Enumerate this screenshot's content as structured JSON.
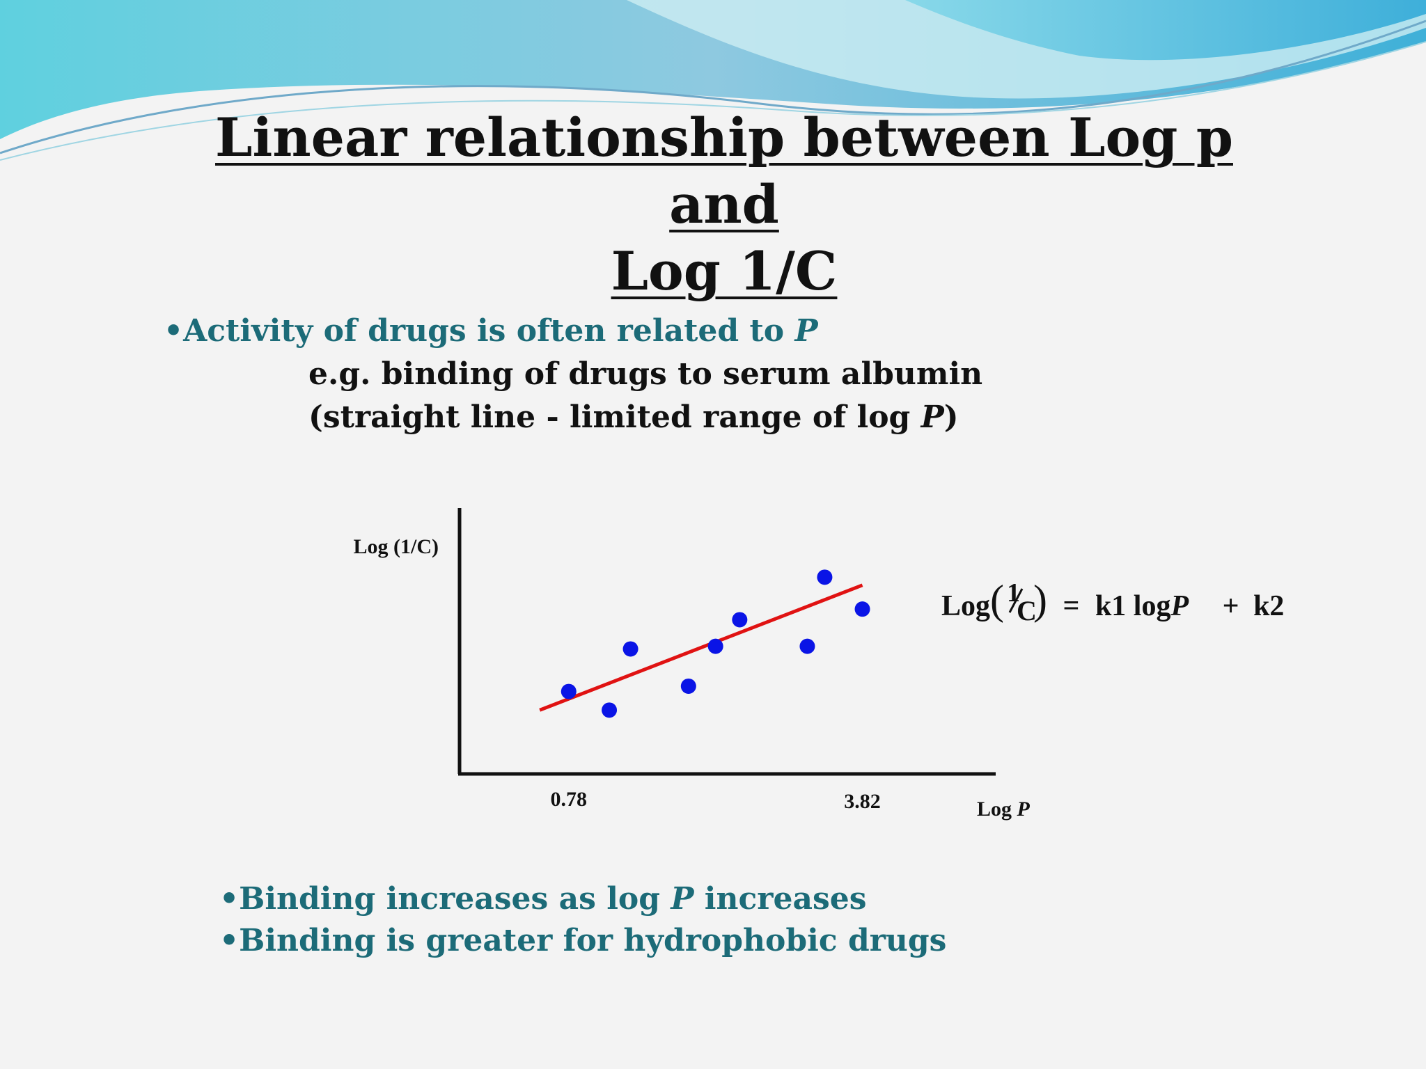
{
  "slide": {
    "title_line1": "Linear relationship between Log p and",
    "title_line2": "Log 1/C",
    "bullet1_prefix": "•Activity of drugs is often related to ",
    "bullet1_italic": "P",
    "sub1": "e.g. binding of drugs to serum albumin",
    "sub2_prefix": "(straight line - limited range of log ",
    "sub2_italic": "P",
    "sub2_suffix": ")",
    "bullet2_prefix": "•Binding increases as log ",
    "bullet2_italic": "P",
    "bullet2_suffix": " increases",
    "bullet3": "•Binding is greater for hydrophobic drugs"
  },
  "equation": {
    "log": "Log",
    "num": "1",
    "den": "C",
    "eq": "=",
    "term1": "k1 log",
    "term1_italic": "P",
    "plus": "+",
    "term2": "k2"
  },
  "colors": {
    "title": "#111111",
    "bullet": "#1c6b78",
    "points": "#0a14e6",
    "fit_line": "#e01212",
    "axis": "#111111"
  },
  "chart_data": {
    "type": "scatter",
    "ylabel": "Log (1/C)",
    "xlabel_prefix": "Log ",
    "xlabel_italic": "P",
    "x_ticks": [
      {
        "value": 0.78,
        "label": "0.78"
      },
      {
        "value": 3.82,
        "label": "3.82"
      }
    ],
    "xlim": [
      -0.35,
      5.2
    ],
    "ylim": [
      0,
      10
    ],
    "grid": false,
    "points": [
      {
        "x": 0.78,
        "y": 3.1
      },
      {
        "x": 1.2,
        "y": 2.4
      },
      {
        "x": 1.42,
        "y": 4.7
      },
      {
        "x": 2.02,
        "y": 3.3
      },
      {
        "x": 2.3,
        "y": 4.8
      },
      {
        "x": 2.55,
        "y": 5.8
      },
      {
        "x": 3.25,
        "y": 4.8
      },
      {
        "x": 3.43,
        "y": 7.4
      },
      {
        "x": 3.82,
        "y": 6.2
      }
    ],
    "fit_line": {
      "x": [
        0.48,
        3.82
      ],
      "y": [
        2.4,
        7.1
      ]
    }
  }
}
